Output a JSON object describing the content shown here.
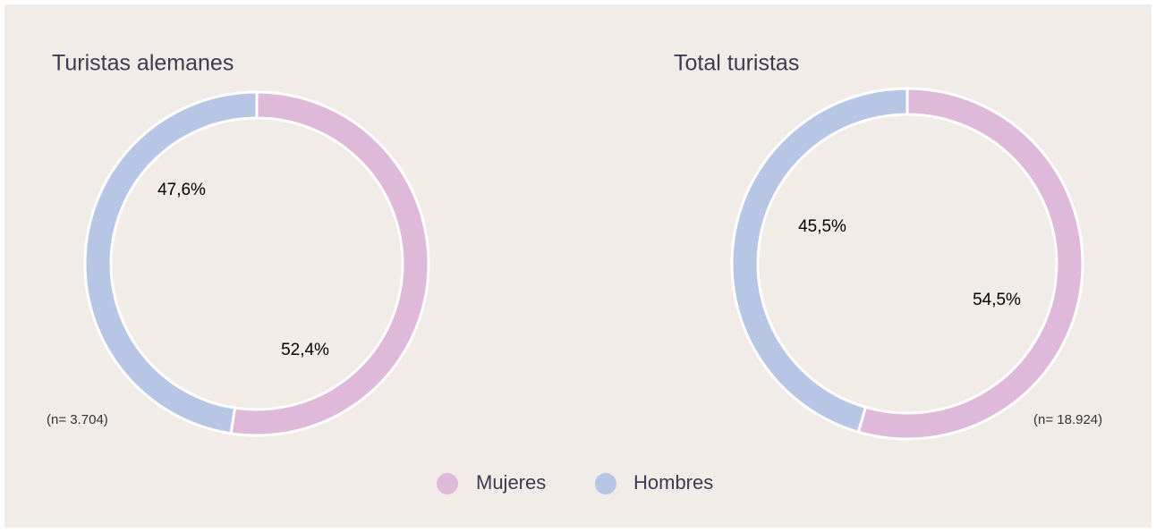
{
  "chart_data": [
    {
      "type": "donut",
      "title": "Turistas alemanes",
      "categories": [
        "Mujeres",
        "Hombres"
      ],
      "values": [
        52.4,
        47.6
      ],
      "value_labels": [
        "52,4%",
        "47,6%"
      ],
      "colors": [
        "#dfb9d9",
        "#b8c6e6"
      ],
      "annotation": "(n= 3.704)"
    },
    {
      "type": "donut",
      "title": "Total turistas",
      "categories": [
        "Mujeres",
        "Hombres"
      ],
      "values": [
        54.5,
        45.5
      ],
      "value_labels": [
        "54,5%",
        "45,5%"
      ],
      "colors": [
        "#dfb9d9",
        "#b8c6e6"
      ],
      "annotation": "(n= 18.924)"
    }
  ]
}
